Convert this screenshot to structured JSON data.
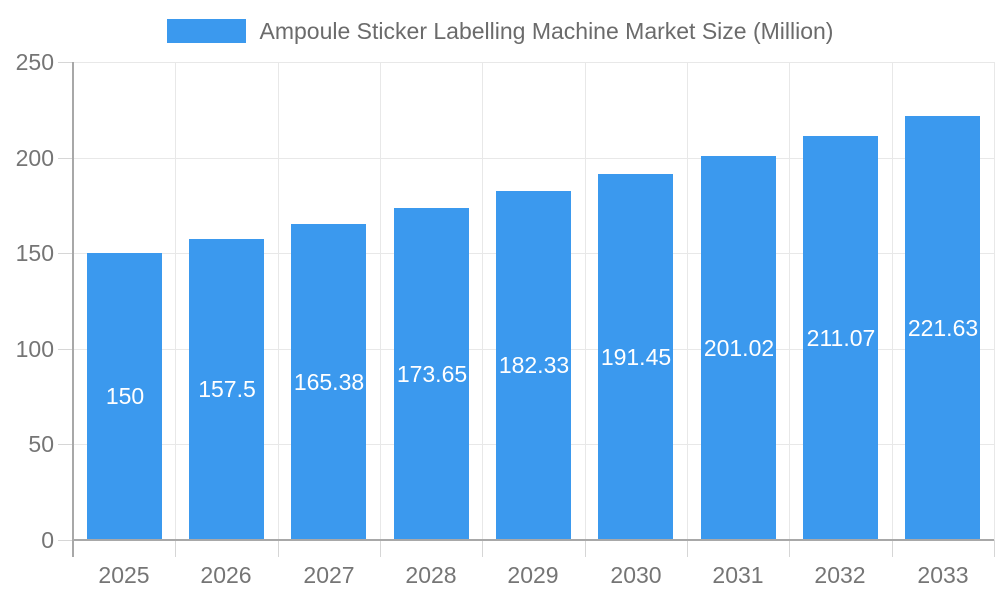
{
  "legend": {
    "items": [
      {
        "label": "Ampoule Sticker Labelling Machine Market Size (Million)",
        "swatch_color": "#3b99ee"
      }
    ]
  },
  "chart_data": {
    "type": "bar",
    "title": "Ampoule Sticker Labelling Machine Market Size (Million)",
    "categories": [
      "2025",
      "2026",
      "2027",
      "2028",
      "2029",
      "2030",
      "2031",
      "2032",
      "2033"
    ],
    "values": [
      150,
      157.5,
      165.38,
      173.65,
      182.33,
      191.45,
      201.02,
      211.07,
      221.63
    ],
    "value_labels": [
      "150",
      "157.5",
      "165.38",
      "173.65",
      "182.33",
      "191.45",
      "201.02",
      "211.07",
      "221.63"
    ],
    "xlabel": "",
    "ylabel": "",
    "ylim": [
      0,
      250
    ],
    "yticks": [
      0,
      50,
      100,
      150,
      200,
      250
    ],
    "ytick_labels": [
      "0",
      "50",
      "100",
      "150",
      "200",
      "250"
    ],
    "grid": true,
    "legend_position": "top",
    "bar_color": "#3b99ee",
    "bar_label_color": "#ffffff",
    "colors": {
      "grid_line": "#e8e8e8",
      "axis_line": "#a8a8a8",
      "tick_line": "#d6d6d6",
      "tick_text": "#757575",
      "legend_text": "#6b6b6b"
    }
  }
}
